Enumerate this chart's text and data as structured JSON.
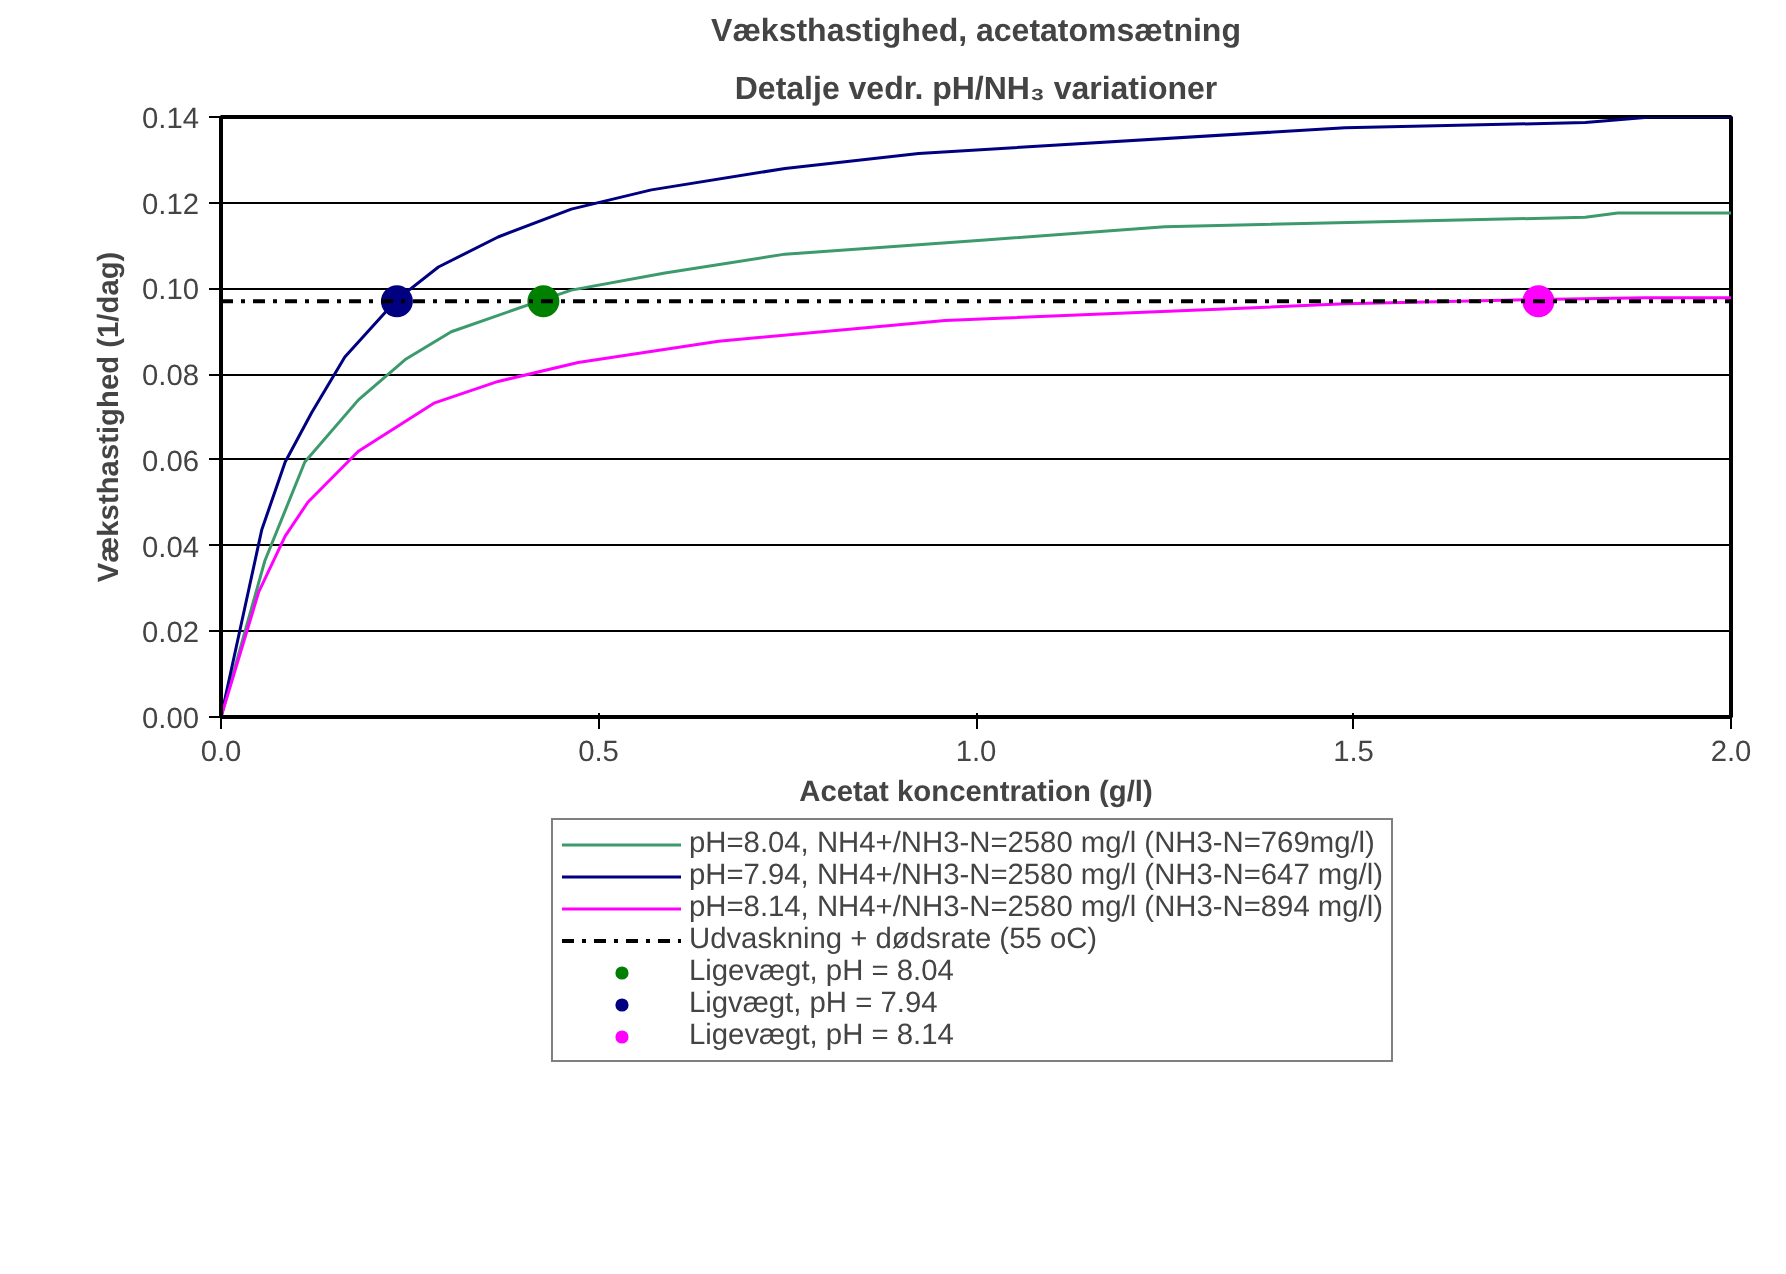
{
  "chart_data": {
    "type": "line",
    "title": "Væksthastighed, acetatomsætning",
    "subtitle": "Detalje vedr. pH/NH₃ variationer",
    "xlabel": "Acetat koncentration (g/l)",
    "ylabel": "Væksthastighed (1/dag)",
    "xlim": [
      0,
      2.0
    ],
    "ylim": [
      0,
      0.14
    ],
    "xticks": [
      {
        "value": 0,
        "label": "0.0"
      },
      {
        "value": 0.5,
        "label": "0.5"
      },
      {
        "value": 1,
        "label": "1.0"
      },
      {
        "value": 1.5,
        "label": "1.5"
      },
      {
        "value": 2,
        "label": "2.0"
      }
    ],
    "yticks": [
      {
        "value": 0,
        "label": "0.00"
      },
      0.02,
      0.04,
      0.06,
      0.08,
      {
        "value": 0.1,
        "label": "0.10"
      },
      0.12,
      0.14
    ],
    "grid": "y",
    "legend": "bottom",
    "marker": "none",
    "line_style": "solid",
    "series": [
      {
        "name": "pH=8.04, NH4+/NH3-N=2580 mg/l (NH3-N=769mg/l)",
        "color": "#3c9a6c",
        "x": [
          0,
          0.058,
          0.111,
          0.182,
          0.244,
          0.305,
          0.427,
          0.464,
          0.588,
          0.747,
          1.012,
          1.25,
          1.807,
          1.85,
          2.0
        ],
        "values": [
          0,
          0.0364,
          0.0595,
          0.074,
          0.0834,
          0.0899,
          0.0974,
          0.0996,
          0.1036,
          0.108,
          0.1113,
          0.1144,
          0.1166,
          0.1176,
          0.1176
        ]
      },
      {
        "name": "pH=7.94, NH4+/NH3-N=2580 mg/l (NH3-N=647 mg/l)",
        "color": "#000080",
        "x": [
          0,
          0.054,
          0.085,
          0.12,
          0.164,
          0.233,
          0.288,
          0.367,
          0.464,
          0.57,
          0.747,
          0.924,
          1.489,
          1.807,
          1.894,
          2.0
        ],
        "values": [
          0,
          0.0437,
          0.0595,
          0.071,
          0.084,
          0.0974,
          0.105,
          0.112,
          0.1185,
          0.123,
          0.128,
          0.1315,
          0.1375,
          0.1387,
          0.14,
          0.14
        ]
      },
      {
        "name": "pH=8.14, NH4+/NH3-N=2580 mg/l (NH3-N=894 mg/l)",
        "color": "#ff00ff",
        "x": [
          0,
          0.05,
          0.085,
          0.115,
          0.182,
          0.283,
          0.367,
          0.473,
          0.659,
          0.959,
          1.489,
          1.745,
          1.886,
          2.0
        ],
        "values": [
          0,
          0.0292,
          0.0422,
          0.0501,
          0.062,
          0.0733,
          0.0783,
          0.0827,
          0.0877,
          0.0925,
          0.0964,
          0.0974,
          0.0978,
          0.0978
        ]
      },
      {
        "name": "Ligevægt, pH = 8.04",
        "type": "scatter",
        "marker": "circle",
        "color": "#008000",
        "x": [
          0.427
        ],
        "values": [
          0.097
        ]
      },
      {
        "name": "Ligvægt, pH = 7.94",
        "type": "scatter",
        "marker": "circle",
        "color": "#000080",
        "x": [
          0.233
        ],
        "values": [
          0.097
        ]
      },
      {
        "name": "Ligevægt, pH = 8.14",
        "type": "scatter",
        "marker": "circle",
        "color": "#ff00ff",
        "x": [
          1.745
        ],
        "values": [
          0.097
        ]
      }
    ],
    "ref_lines": [
      {
        "axis": "y",
        "value": 0.097,
        "label": "Udvaskning + dødsrate (55 oC)",
        "color": "#000000",
        "line_style": "dashdot"
      }
    ]
  }
}
